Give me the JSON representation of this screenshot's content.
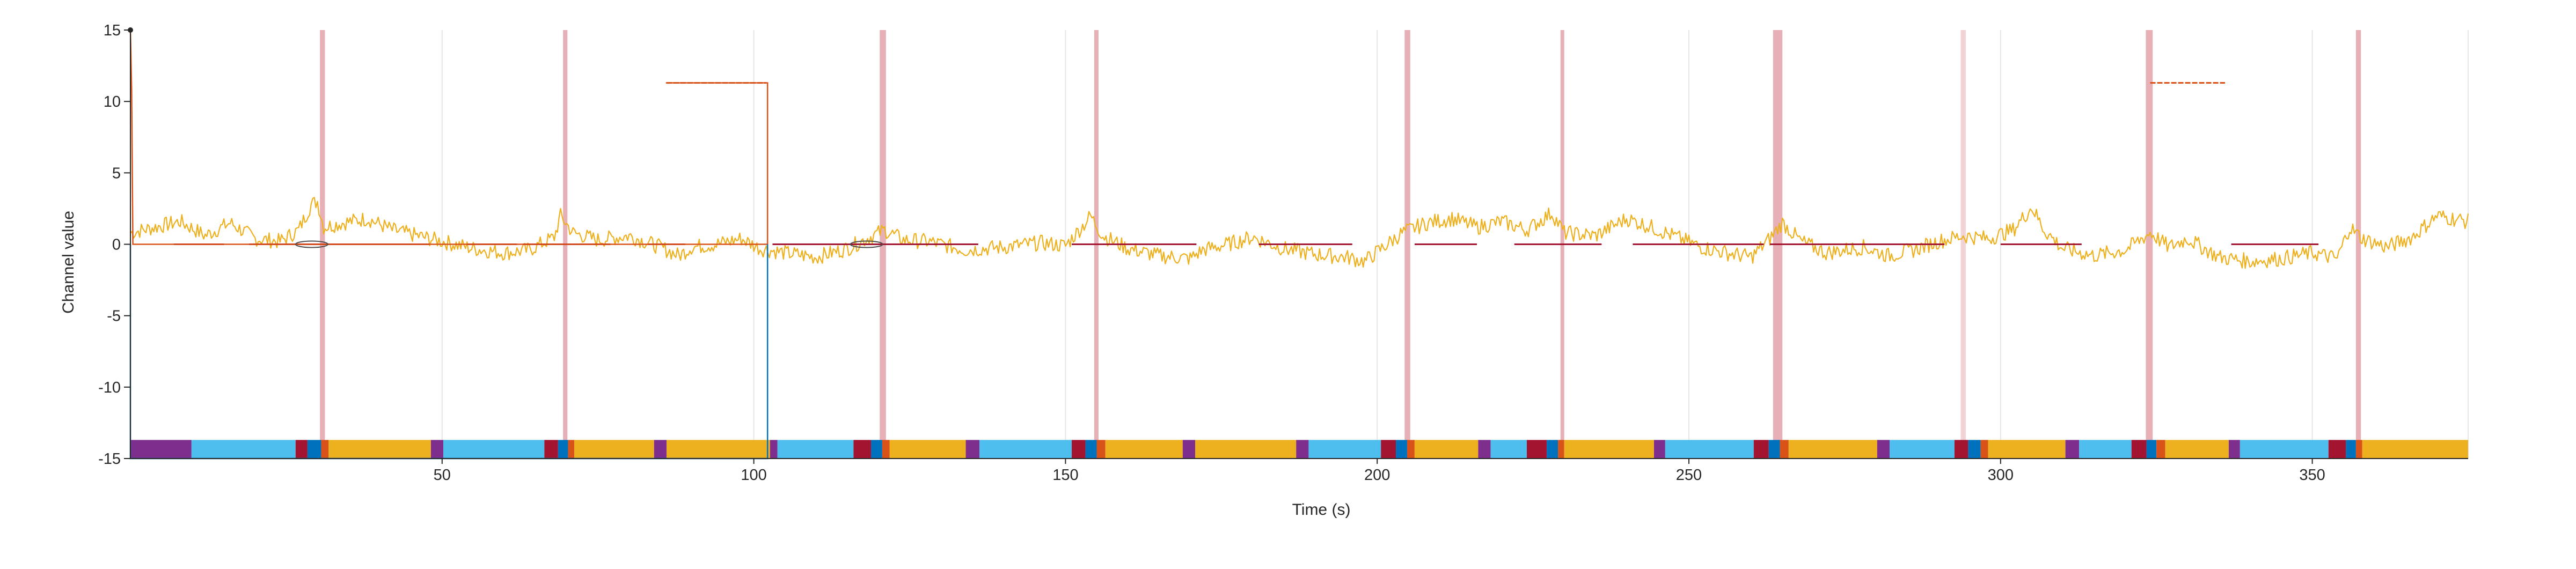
{
  "chart_data": {
    "type": "line",
    "title": "",
    "xlabel": "Time (s)",
    "ylabel": "Channel value",
    "xlim": [
      0,
      375
    ],
    "ylim": [
      -15,
      15
    ],
    "x_ticks": [
      50,
      100,
      150,
      200,
      250,
      300,
      350
    ],
    "y_ticks": [
      15,
      10,
      5,
      0,
      -5,
      -10,
      -15
    ],
    "grid": "vertical",
    "colors": {
      "signal": "#EDB120",
      "step_orange": "#D95319",
      "step_blue": "#0072BD",
      "baseline": "#A2142F",
      "event_band": "#E7B0B7",
      "gridline": "#E6E6E6",
      "axis": "#262626",
      "ellipse": "#4D4D4D"
    },
    "series": [
      {
        "key": "signal",
        "noise_seed": 7,
        "anchors": [
          [
            0,
            0.8
          ],
          [
            4,
            1.2
          ],
          [
            8,
            1.6
          ],
          [
            12,
            0.6
          ],
          [
            16,
            1.5
          ],
          [
            20,
            0.4
          ],
          [
            24,
            0.2
          ],
          [
            27,
            1.0
          ],
          [
            29,
            2.8
          ],
          [
            30,
            3.0
          ],
          [
            31,
            1.2
          ],
          [
            34,
            1.5
          ],
          [
            38,
            1.8
          ],
          [
            42,
            1.0
          ],
          [
            46,
            0.6
          ],
          [
            50,
            0.2
          ],
          [
            55,
            -0.3
          ],
          [
            60,
            -0.6
          ],
          [
            64,
            -0.4
          ],
          [
            68,
            0.5
          ],
          [
            69,
            2.0
          ],
          [
            71,
            0.8
          ],
          [
            75,
            0.3
          ],
          [
            80,
            0.6
          ],
          [
            85,
            -0.2
          ],
          [
            88,
            -0.8
          ],
          [
            90,
            -0.2
          ],
          [
            94,
            0.0
          ],
          [
            98,
            0.4
          ],
          [
            101,
            -0.3
          ],
          [
            105,
            -0.6
          ],
          [
            110,
            -0.9
          ],
          [
            115,
            -0.3
          ],
          [
            119,
            0.6
          ],
          [
            121,
            1.0
          ],
          [
            124,
            0.3
          ],
          [
            128,
            0.2
          ],
          [
            134,
            -0.4
          ],
          [
            140,
            -0.2
          ],
          [
            146,
            0.1
          ],
          [
            150,
            -0.1
          ],
          [
            153,
            1.4
          ],
          [
            154,
            2.0
          ],
          [
            156,
            0.6
          ],
          [
            160,
            -0.3
          ],
          [
            165,
            -0.8
          ],
          [
            170,
            -1.0
          ],
          [
            172,
            -0.4
          ],
          [
            176,
            0.0
          ],
          [
            180,
            0.5
          ],
          [
            185,
            -0.3
          ],
          [
            190,
            -0.7
          ],
          [
            195,
            -0.9
          ],
          [
            198,
            -1.2
          ],
          [
            201,
            -0.2
          ],
          [
            204,
            0.8
          ],
          [
            208,
            1.5
          ],
          [
            212,
            1.8
          ],
          [
            216,
            1.2
          ],
          [
            220,
            1.6
          ],
          [
            224,
            1.0
          ],
          [
            228,
            2.2
          ],
          [
            230,
            0.8
          ],
          [
            235,
            0.6
          ],
          [
            240,
            1.8
          ],
          [
            244,
            1.2
          ],
          [
            248,
            0.5
          ],
          [
            252,
            -0.2
          ],
          [
            256,
            -0.6
          ],
          [
            260,
            -0.9
          ],
          [
            263,
            0.4
          ],
          [
            265,
            1.5
          ],
          [
            268,
            0.2
          ],
          [
            272,
            -0.6
          ],
          [
            278,
            -0.2
          ],
          [
            282,
            -0.8
          ],
          [
            286,
            -0.4
          ],
          [
            290,
            0.2
          ],
          [
            294,
            0.6
          ],
          [
            298,
            0.4
          ],
          [
            302,
            1.0
          ],
          [
            305,
            2.6
          ],
          [
            307,
            1.0
          ],
          [
            310,
            -0.3
          ],
          [
            315,
            -0.8
          ],
          [
            320,
            -0.4
          ],
          [
            324,
            0.8
          ],
          [
            327,
            -0.2
          ],
          [
            330,
            0.4
          ],
          [
            335,
            -0.9
          ],
          [
            340,
            -1.2
          ],
          [
            345,
            -1.0
          ],
          [
            350,
            -0.6
          ],
          [
            354,
            -1.0
          ],
          [
            356,
            1.2
          ],
          [
            358,
            0.4
          ],
          [
            362,
            -0.2
          ],
          [
            366,
            0.5
          ],
          [
            370,
            2.0
          ],
          [
            375,
            1.6
          ]
        ]
      },
      {
        "key": "step_orange",
        "points": [
          [
            0,
            15
          ],
          [
            0.2,
            10.8
          ],
          [
            0.4,
            0
          ],
          [
            102.2,
            0
          ],
          [
            102.2,
            11.3
          ],
          [
            85.9,
            11.3
          ]
        ]
      },
      {
        "key": "step_blue",
        "points": [
          [
            0,
            0
          ],
          [
            0,
            -15
          ],
          [
            102.2,
            -15
          ],
          [
            102.2,
            0
          ]
        ]
      },
      {
        "key": "baseline_segments",
        "segments": [
          [
            7,
            15
          ],
          [
            19,
            48
          ],
          [
            54,
            62
          ],
          [
            63,
            77
          ],
          [
            83,
            89
          ],
          [
            103,
            136
          ],
          [
            151,
            171
          ],
          [
            181,
            196
          ],
          [
            206,
            216
          ],
          [
            222,
            236
          ],
          [
            241,
            262
          ],
          [
            263,
            291
          ],
          [
            300,
            313
          ],
          [
            337,
            351
          ]
        ]
      },
      {
        "key": "high_segments",
        "segments": [
          [
            86,
            102
          ],
          [
            324,
            336
          ]
        ]
      }
    ],
    "event_bands": [
      [
        30.4,
        31.2
      ],
      [
        69.4,
        70.1
      ],
      [
        120.2,
        121.2
      ],
      [
        154.6,
        155.3
      ],
      [
        204.4,
        205.3
      ],
      [
        229.4,
        230.0
      ],
      [
        263.5,
        265.0
      ],
      [
        323.3,
        324.4
      ],
      [
        357.0,
        357.8
      ]
    ],
    "light_event_lines": [
      293.6,
      294.0
    ],
    "ellipses": [
      [
        26.5,
        0
      ],
      [
        115.5,
        0
      ]
    ],
    "state_bar": {
      "y_range": [
        -15,
        -14
      ],
      "segments": [
        [
          0,
          9.8,
          "#7E2F8E"
        ],
        [
          9.8,
          26.5,
          "#4DBEEE"
        ],
        [
          26.5,
          28.4,
          "#A2142F"
        ],
        [
          28.4,
          30.6,
          "#0072BD"
        ],
        [
          30.6,
          31.8,
          "#D95319"
        ],
        [
          31.8,
          48.2,
          "#EDB120"
        ],
        [
          48.2,
          50.2,
          "#7E2F8E"
        ],
        [
          50.2,
          66.4,
          "#4DBEEE"
        ],
        [
          66.4,
          68.6,
          "#A2142F"
        ],
        [
          68.6,
          70.2,
          "#0072BD"
        ],
        [
          70.2,
          71.2,
          "#D95319"
        ],
        [
          71.2,
          84.0,
          "#EDB120"
        ],
        [
          84.0,
          86.0,
          "#7E2F8E"
        ],
        [
          86.0,
          102.6,
          "#EDB120"
        ],
        [
          102.6,
          103.8,
          "#7E2F8E"
        ],
        [
          103.8,
          116.0,
          "#4DBEEE"
        ],
        [
          116.0,
          118.8,
          "#A2142F"
        ],
        [
          118.8,
          120.6,
          "#0072BD"
        ],
        [
          120.6,
          121.8,
          "#D95319"
        ],
        [
          121.8,
          134.0,
          "#EDB120"
        ],
        [
          134.0,
          136.2,
          "#7E2F8E"
        ],
        [
          136.2,
          151.0,
          "#4DBEEE"
        ],
        [
          151.0,
          153.2,
          "#A2142F"
        ],
        [
          153.2,
          155.0,
          "#0072BD"
        ],
        [
          155.0,
          156.4,
          "#D95319"
        ],
        [
          156.4,
          168.8,
          "#EDB120"
        ],
        [
          168.8,
          170.8,
          "#7E2F8E"
        ],
        [
          170.8,
          187.0,
          "#EDB120"
        ],
        [
          187.0,
          189.0,
          "#7E2F8E"
        ],
        [
          189.0,
          200.6,
          "#4DBEEE"
        ],
        [
          200.6,
          203.0,
          "#A2142F"
        ],
        [
          203.0,
          204.8,
          "#0072BD"
        ],
        [
          204.8,
          206.0,
          "#D95319"
        ],
        [
          206.0,
          216.2,
          "#EDB120"
        ],
        [
          216.2,
          218.2,
          "#7E2F8E"
        ],
        [
          218.2,
          224.0,
          "#4DBEEE"
        ],
        [
          224.0,
          227.2,
          "#A2142F"
        ],
        [
          227.2,
          229.0,
          "#0072BD"
        ],
        [
          229.0,
          230.0,
          "#D95319"
        ],
        [
          230.0,
          244.4,
          "#EDB120"
        ],
        [
          244.4,
          246.2,
          "#7E2F8E"
        ],
        [
          246.2,
          260.4,
          "#4DBEEE"
        ],
        [
          260.4,
          262.8,
          "#A2142F"
        ],
        [
          262.8,
          264.6,
          "#0072BD"
        ],
        [
          264.6,
          266.0,
          "#D95319"
        ],
        [
          266.0,
          280.2,
          "#EDB120"
        ],
        [
          280.2,
          282.2,
          "#7E2F8E"
        ],
        [
          282.2,
          292.6,
          "#4DBEEE"
        ],
        [
          292.6,
          294.8,
          "#A2142F"
        ],
        [
          294.8,
          296.8,
          "#0072BD"
        ],
        [
          296.8,
          298.0,
          "#D95319"
        ],
        [
          298.0,
          310.4,
          "#EDB120"
        ],
        [
          310.4,
          312.6,
          "#7E2F8E"
        ],
        [
          312.6,
          321.0,
          "#4DBEEE"
        ],
        [
          321.0,
          323.4,
          "#A2142F"
        ],
        [
          323.4,
          325.0,
          "#0072BD"
        ],
        [
          325.0,
          326.4,
          "#D95319"
        ],
        [
          326.4,
          336.6,
          "#EDB120"
        ],
        [
          336.6,
          338.4,
          "#7E2F8E"
        ],
        [
          338.4,
          352.6,
          "#4DBEEE"
        ],
        [
          352.6,
          355.4,
          "#A2142F"
        ],
        [
          355.4,
          357.0,
          "#0072BD"
        ],
        [
          357.0,
          358.0,
          "#D95319"
        ],
        [
          358.0,
          375.0,
          "#EDB120"
        ]
      ]
    }
  }
}
